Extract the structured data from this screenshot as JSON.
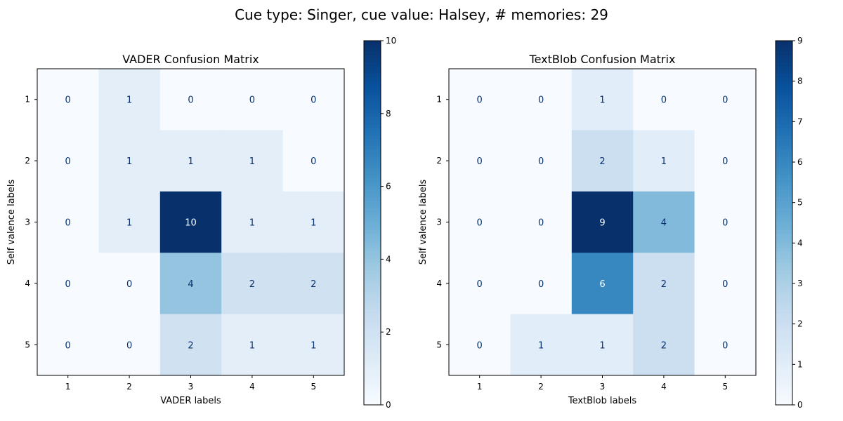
{
  "figure": {
    "suptitle": "Cue type: Singer, cue value: Halsey, # memories: 29"
  },
  "chart_data": [
    {
      "type": "heatmap",
      "title": "VADER Confusion Matrix",
      "xlabel": "VADER labels",
      "ylabel": "Self valence labels",
      "x_categories": [
        "1",
        "2",
        "3",
        "4",
        "5"
      ],
      "y_categories": [
        "1",
        "2",
        "3",
        "4",
        "5"
      ],
      "values": [
        [
          0,
          1,
          0,
          0,
          0
        ],
        [
          0,
          1,
          1,
          1,
          0
        ],
        [
          0,
          1,
          10,
          1,
          1
        ],
        [
          0,
          0,
          4,
          2,
          2
        ],
        [
          0,
          0,
          2,
          1,
          1
        ]
      ],
      "colormap": "Blues",
      "colorbar": {
        "min": 0,
        "max": 10,
        "ticks": [
          0,
          2,
          4,
          6,
          8,
          10
        ]
      }
    },
    {
      "type": "heatmap",
      "title": "TextBlob Confusion Matrix",
      "xlabel": "TextBlob labels",
      "ylabel": "Self valence labels",
      "x_categories": [
        "1",
        "2",
        "3",
        "4",
        "5"
      ],
      "y_categories": [
        "1",
        "2",
        "3",
        "4",
        "5"
      ],
      "values": [
        [
          0,
          0,
          1,
          0,
          0
        ],
        [
          0,
          0,
          2,
          1,
          0
        ],
        [
          0,
          0,
          9,
          4,
          0
        ],
        [
          0,
          0,
          6,
          2,
          0
        ],
        [
          0,
          1,
          1,
          2,
          0
        ]
      ],
      "colormap": "Blues",
      "colorbar": {
        "min": 0,
        "max": 9,
        "ticks": [
          0,
          1,
          2,
          3,
          4,
          5,
          6,
          7,
          8,
          9
        ]
      }
    }
  ]
}
